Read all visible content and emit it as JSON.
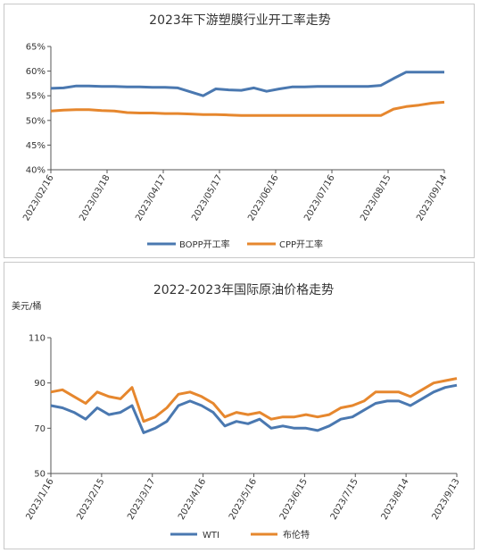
{
  "chart_data": [
    {
      "type": "line",
      "title": "2023年下游塑膜行业开工率走势",
      "ylabel": "",
      "xlabel": "",
      "ylim": [
        40,
        65
      ],
      "yticks": [
        "40%",
        "45%",
        "50%",
        "55%",
        "60%",
        "65%"
      ],
      "x_ticks": [
        "2023/02/16",
        "2023/03/18",
        "2023/04/17",
        "2023/05/17",
        "2023/06/16",
        "2023/07/16",
        "2023/08/15",
        "2023/09/14"
      ],
      "grid": false,
      "legend_position": "bottom",
      "colors": {
        "series1": "#4a78b0",
        "series2": "#e6872e"
      },
      "x": [
        "2023/02/16",
        "2023/02/23",
        "2023/03/02",
        "2023/03/09",
        "2023/03/16",
        "2023/03/23",
        "2023/03/30",
        "2023/04/06",
        "2023/04/13",
        "2023/04/20",
        "2023/04/27",
        "2023/05/04",
        "2023/05/11",
        "2023/05/18",
        "2023/05/25",
        "2023/06/01",
        "2023/06/08",
        "2023/06/15",
        "2023/06/22",
        "2023/06/29",
        "2023/07/06",
        "2023/07/13",
        "2023/07/20",
        "2023/07/27",
        "2023/08/03",
        "2023/08/10",
        "2023/08/17",
        "2023/08/24",
        "2023/08/31",
        "2023/09/07",
        "2023/09/14",
        "2023/09/21"
      ],
      "series": [
        {
          "name": "BOPP开工率",
          "values": [
            56.5,
            56.6,
            57.0,
            57.0,
            56.9,
            56.9,
            56.8,
            56.8,
            56.7,
            56.7,
            56.6,
            55.8,
            55.0,
            56.4,
            56.2,
            56.1,
            56.6,
            55.9,
            56.4,
            56.8,
            56.8,
            56.9,
            56.9,
            56.9,
            56.9,
            56.9,
            57.1,
            58.5,
            59.8,
            59.8,
            59.8,
            59.8
          ]
        },
        {
          "name": "CPP开工率",
          "values": [
            51.9,
            52.1,
            52.2,
            52.2,
            52.0,
            51.9,
            51.6,
            51.5,
            51.5,
            51.4,
            51.4,
            51.3,
            51.2,
            51.2,
            51.1,
            51.0,
            51.0,
            51.0,
            51.0,
            51.0,
            51.0,
            51.0,
            51.0,
            51.0,
            51.0,
            51.0,
            51.0,
            52.3,
            52.8,
            53.1,
            53.5,
            53.7
          ]
        }
      ]
    },
    {
      "type": "line",
      "title": "2022-2023年国际原油价格走势",
      "ylabel": "美元/桶",
      "xlabel": "",
      "ylim": [
        50,
        110
      ],
      "yticks": [
        "50",
        "70",
        "90",
        "110"
      ],
      "x_ticks": [
        "2023/1/16",
        "2023/2/15",
        "2023/3/17",
        "2023/4/16",
        "2023/5/16",
        "2023/6/15",
        "2023/7/15",
        "2023/8/14",
        "2023/9/13"
      ],
      "grid": false,
      "legend_position": "bottom",
      "colors": {
        "series1": "#4a78b0",
        "series2": "#e6872e"
      },
      "x": [
        "2023/1/16",
        "2023/1/23",
        "2023/1/30",
        "2023/2/6",
        "2023/2/13",
        "2023/2/20",
        "2023/2/27",
        "2023/3/6",
        "2023/3/13",
        "2023/3/20",
        "2023/3/27",
        "2023/4/3",
        "2023/4/10",
        "2023/4/17",
        "2023/4/24",
        "2023/5/1",
        "2023/5/8",
        "2023/5/15",
        "2023/5/22",
        "2023/5/29",
        "2023/6/5",
        "2023/6/12",
        "2023/6/19",
        "2023/6/26",
        "2023/7/3",
        "2023/7/10",
        "2023/7/17",
        "2023/7/24",
        "2023/7/31",
        "2023/8/7",
        "2023/8/14",
        "2023/8/21",
        "2023/8/28",
        "2023/9/4",
        "2023/9/11",
        "2023/9/13"
      ],
      "series": [
        {
          "name": "WTI",
          "values": [
            80,
            79,
            77,
            74,
            79,
            76,
            77,
            80,
            68,
            70,
            73,
            80,
            82,
            80,
            77,
            71,
            73,
            72,
            74,
            70,
            71,
            70,
            70,
            69,
            71,
            74,
            75,
            78,
            81,
            82,
            82,
            80,
            83,
            86,
            88,
            89
          ]
        },
        {
          "name": "布伦特",
          "values": [
            86,
            87,
            84,
            81,
            86,
            84,
            83,
            88,
            73,
            75,
            79,
            85,
            86,
            84,
            81,
            75,
            77,
            76,
            77,
            74,
            75,
            75,
            76,
            75,
            76,
            79,
            80,
            82,
            86,
            86,
            86,
            84,
            87,
            90,
            91,
            92
          ]
        }
      ]
    }
  ]
}
